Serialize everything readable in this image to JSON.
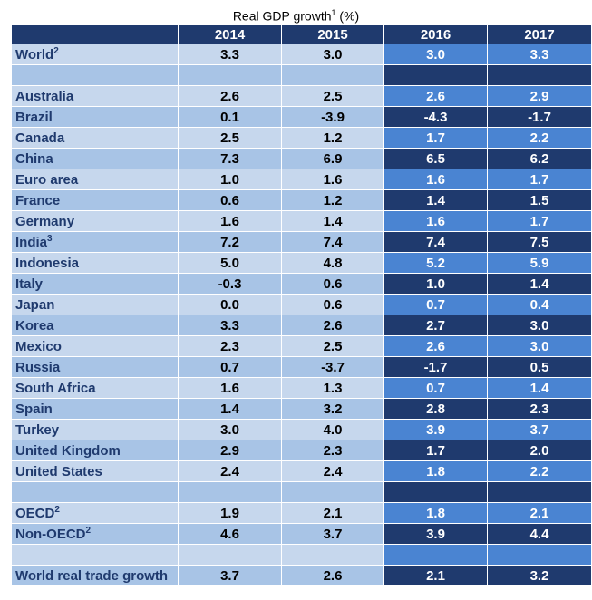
{
  "title": "Real GDP growth",
  "title_sup": "1",
  "title_unit": "(%)",
  "chart_data": {
    "type": "table",
    "title": "Real GDP growth (%)",
    "columns": [
      "2014",
      "2015",
      "2016",
      "2017"
    ],
    "projection_columns": [
      "2016",
      "2017"
    ],
    "rows": [
      {
        "label": "World",
        "sup": "2",
        "values": [
          "3.3",
          "3.0",
          "3.0",
          "3.3"
        ]
      },
      {
        "label": "",
        "values": [
          "",
          "",
          "",
          ""
        ]
      },
      {
        "label": "Australia",
        "values": [
          "2.6",
          "2.5",
          "2.6",
          "2.9"
        ]
      },
      {
        "label": "Brazil",
        "values": [
          "0.1",
          "-3.9",
          "-4.3",
          "-1.7"
        ]
      },
      {
        "label": "Canada",
        "values": [
          "2.5",
          "1.2",
          "1.7",
          "2.2"
        ]
      },
      {
        "label": "China",
        "values": [
          "7.3",
          "6.9",
          "6.5",
          "6.2"
        ]
      },
      {
        "label": "Euro area",
        "values": [
          "1.0",
          "1.6",
          "1.6",
          "1.7"
        ]
      },
      {
        "label": "France",
        "values": [
          "0.6",
          "1.2",
          "1.4",
          "1.5"
        ]
      },
      {
        "label": "Germany",
        "values": [
          "1.6",
          "1.4",
          "1.6",
          "1.7"
        ]
      },
      {
        "label": "India",
        "sup": "3",
        "values": [
          "7.2",
          "7.4",
          "7.4",
          "7.5"
        ]
      },
      {
        "label": "Indonesia",
        "values": [
          "5.0",
          "4.8",
          "5.2",
          "5.9"
        ]
      },
      {
        "label": "Italy",
        "values": [
          "-0.3",
          "0.6",
          "1.0",
          "1.4"
        ]
      },
      {
        "label": "Japan",
        "values": [
          "0.0",
          "0.6",
          "0.7",
          "0.4"
        ]
      },
      {
        "label": "Korea",
        "values": [
          "3.3",
          "2.6",
          "2.7",
          "3.0"
        ]
      },
      {
        "label": "Mexico",
        "values": [
          "2.3",
          "2.5",
          "2.6",
          "3.0"
        ]
      },
      {
        "label": "Russia",
        "values": [
          "0.7",
          "-3.7",
          "-1.7",
          "0.5"
        ]
      },
      {
        "label": "South Africa",
        "values": [
          "1.6",
          "1.3",
          "0.7",
          "1.4"
        ]
      },
      {
        "label": "Spain",
        "values": [
          "1.4",
          "3.2",
          "2.8",
          "2.3"
        ]
      },
      {
        "label": "Turkey",
        "values": [
          "3.0",
          "4.0",
          "3.9",
          "3.7"
        ]
      },
      {
        "label": "United Kingdom",
        "values": [
          "2.9",
          "2.3",
          "1.7",
          "2.0"
        ]
      },
      {
        "label": "United States",
        "values": [
          "2.4",
          "2.4",
          "1.8",
          "2.2"
        ]
      },
      {
        "label": "",
        "values": [
          "",
          "",
          "",
          ""
        ]
      },
      {
        "label": "OECD",
        "sup": "2",
        "values": [
          "1.9",
          "2.1",
          "1.8",
          "2.1"
        ]
      },
      {
        "label": "Non-OECD",
        "sup": "2",
        "values": [
          "4.6",
          "3.7",
          "3.9",
          "4.4"
        ]
      },
      {
        "label": "",
        "values": [
          "",
          "",
          "",
          ""
        ]
      },
      {
        "label": "World real trade growth",
        "values": [
          "3.7",
          "2.6",
          "2.1",
          "3.2"
        ]
      }
    ]
  }
}
